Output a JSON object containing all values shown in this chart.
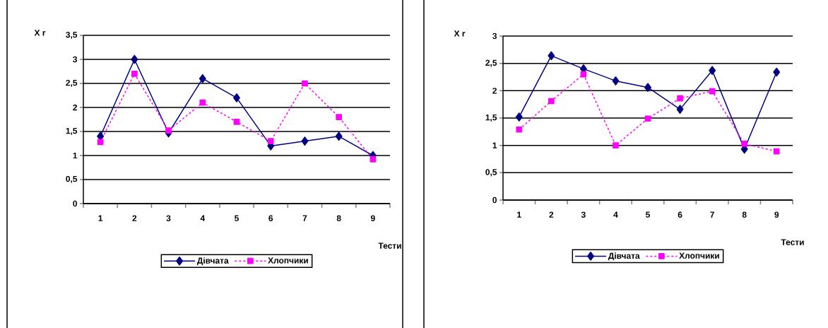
{
  "chart_data": [
    {
      "type": "line",
      "ylabel": "X r",
      "xlabel": "Тести",
      "categories": [
        "1",
        "2",
        "3",
        "4",
        "5",
        "6",
        "7",
        "8",
        "9"
      ],
      "series": [
        {
          "name": "Дівчата",
          "color": "#000080",
          "marker": "diamond",
          "line_style": "solid",
          "values": [
            1.4,
            3.0,
            1.47,
            2.6,
            2.2,
            1.2,
            1.3,
            1.4,
            1.0
          ]
        },
        {
          "name": "Хлопчики",
          "color": "#ff00ff",
          "marker": "square",
          "line_style": "dashed",
          "values": [
            1.28,
            2.7,
            1.52,
            2.1,
            1.7,
            1.3,
            2.5,
            1.8,
            0.92
          ]
        }
      ],
      "ylim": [
        0,
        3.5
      ],
      "yticks": [
        0,
        {
          "value": 0.5,
          "label": "0,5"
        },
        1,
        {
          "value": 1.5,
          "label": "1,5"
        },
        2,
        {
          "value": 2.5,
          "label": "2,5"
        },
        3,
        {
          "value": 3.5,
          "label": "3,5"
        }
      ],
      "grid": "y",
      "legend": "bottom"
    },
    {
      "type": "line",
      "ylabel": "X r",
      "xlabel": "Тести",
      "categories": [
        "1",
        "2",
        "3",
        "4",
        "5",
        "6",
        "7",
        "8",
        "9"
      ],
      "series": [
        {
          "name": "Дівчата",
          "color": "#000080",
          "marker": "diamond",
          "line_style": "solid",
          "values": [
            1.52,
            2.64,
            2.4,
            2.18,
            2.06,
            1.66,
            2.37,
            0.93,
            2.34
          ]
        },
        {
          "name": "Хлопчики",
          "color": "#ff00ff",
          "marker": "square",
          "line_style": "dashed",
          "values": [
            1.29,
            1.81,
            2.3,
            1.0,
            1.49,
            1.86,
            1.99,
            1.03,
            0.89
          ]
        }
      ],
      "ylim": [
        0,
        3
      ],
      "yticks": [
        0,
        {
          "value": 0.5,
          "label": "0,5"
        },
        1,
        {
          "value": 1.5,
          "label": "1,5"
        },
        2,
        {
          "value": 2.5,
          "label": "2,5"
        },
        3
      ],
      "grid": "y",
      "legend": "bottom"
    }
  ]
}
